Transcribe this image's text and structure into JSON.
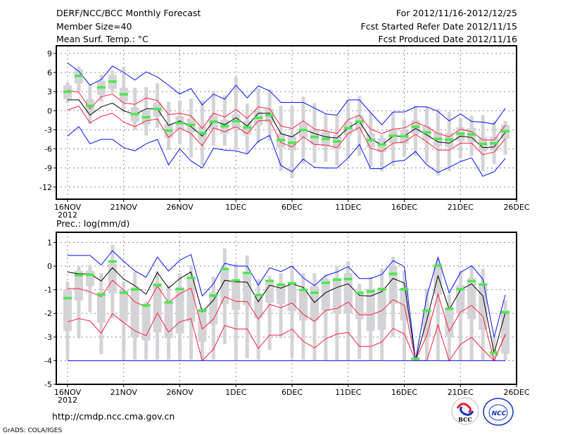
{
  "header": {
    "title": "DERF/NCC/BCC Monthly Forecast",
    "member_size": "Member Size=40",
    "variable": "Mean Surf. Temp.: °C",
    "period": "For 2012/11/16-2012/12/25",
    "started": "Fcst Started Refer Date 2012/11/15",
    "produced": "Fcst Produced Date 2012/11/16"
  },
  "footer": {
    "url": "http://cmdp.ncc.cma.gov.cn",
    "grads": "GrADS: COLA/IGES",
    "logo_bcc": "BCC",
    "logo_ncc": "NCC"
  },
  "colors": {
    "mean_marker": "#4be84b",
    "median_line": "#000000",
    "inner_band": "#ff1f3a",
    "outer_band": "#0010ff",
    "box": "#d4d4d8"
  },
  "chart_data": [
    {
      "type": "box",
      "title": "Mean Surf. Temp.: °C",
      "ylabel": "°C",
      "ylim": [
        -13.9,
        10.2
      ],
      "yticks": [
        9,
        6,
        3,
        0,
        -3,
        -6,
        -9,
        -12
      ],
      "xticks": [
        {
          "day": 0,
          "label": "16NOV",
          "sub": "2012"
        },
        {
          "day": 5,
          "label": "21NOV"
        },
        {
          "day": 10,
          "label": "26NOV"
        },
        {
          "day": 15,
          "label": "1DEC"
        },
        {
          "day": 20,
          "label": "6DEC"
        },
        {
          "day": 25,
          "label": "11DEC"
        },
        {
          "day": 30,
          "label": "16DEC"
        },
        {
          "day": 35,
          "label": "21DEC"
        },
        {
          "day": 40,
          "label": "26DEC"
        }
      ],
      "grid": true,
      "mean": [
        3.0,
        5.5,
        0.8,
        3.7,
        4.6,
        2.6,
        -0.5,
        -1.0,
        0.3,
        -3.1,
        -1.9,
        -2.2,
        -3.5,
        -1.7,
        -2.4,
        -1.6,
        -2.6,
        -1.1,
        -0.7,
        -4.6,
        -5.0,
        -3.0,
        -4.1,
        -4.4,
        -4.8,
        -2.7,
        -1.7,
        -4.6,
        -5.3,
        -3.9,
        -4.0,
        -2.5,
        -3.4,
        -4.4,
        -4.5,
        -3.6,
        -3.7,
        -5.2,
        -5.1,
        -3.2
      ],
      "whisker_low": [
        1.2,
        3.0,
        -2.1,
        1.4,
        2.8,
        -0.3,
        -3.0,
        -3.9,
        -2.7,
        -6.2,
        -5.2,
        -7.4,
        -8.6,
        -5.5,
        -5.5,
        -6.1,
        -6.8,
        -5.1,
        -4.7,
        -9.5,
        -10.6,
        -8.3,
        -8.2,
        -8.0,
        -8.6,
        -7.5,
        -7.1,
        -8.9,
        -9.5,
        -8.7,
        -7.1,
        -7.1,
        -8.2,
        -10.2,
        -9.5,
        -7.5,
        -7.1,
        -9.5,
        -8.4,
        -6.9
      ],
      "whisker_high": [
        4.5,
        6.9,
        4.0,
        5.6,
        6.3,
        6.9,
        3.6,
        3.7,
        4.3,
        1.4,
        1.6,
        1.9,
        1.6,
        3.1,
        2.4,
        5.3,
        1.1,
        3.5,
        3.4,
        0.8,
        0.7,
        2.2,
        1.2,
        -0.5,
        -0.8,
        1.7,
        2.3,
        -0.3,
        -3.8,
        -0.2,
        -1.4,
        0.8,
        0.6,
        0.3,
        -0.2,
        -1.2,
        -0.8,
        -0.7,
        -1.6,
        -1.6
      ],
      "box_low": [
        1.8,
        4.3,
        -0.4,
        2.5,
        3.4,
        1.4,
        -1.7,
        -2.2,
        -0.9,
        -4.3,
        -3.1,
        -3.4,
        -4.7,
        -2.9,
        -3.6,
        -2.8,
        -3.8,
        -2.3,
        -1.9,
        -5.8,
        -6.2,
        -4.2,
        -5.3,
        -5.6,
        -6.0,
        -3.9,
        -2.9,
        -5.8,
        -6.5,
        -5.1,
        -5.2,
        -3.7,
        -4.6,
        -5.6,
        -5.7,
        -4.8,
        -4.9,
        -6.4,
        -6.3,
        -4.4
      ],
      "box_high": [
        4.0,
        6.5,
        1.8,
        4.7,
        5.6,
        3.6,
        0.5,
        0.0,
        1.3,
        -2.1,
        -0.9,
        -1.2,
        -2.5,
        -0.7,
        -1.4,
        -0.6,
        -1.6,
        -0.1,
        0.3,
        -3.6,
        -4.0,
        -2.0,
        -3.1,
        -3.4,
        -3.8,
        -1.7,
        -0.7,
        -3.6,
        -4.3,
        -2.9,
        -3.0,
        -1.5,
        -2.4,
        -3.4,
        -3.5,
        -2.6,
        -2.7,
        -4.2,
        -4.1,
        -2.2
      ],
      "series": [
        {
          "name": "black",
          "color": "#000000",
          "values": [
            1.7,
            1.7,
            -0.7,
            0.6,
            1.2,
            0.0,
            -0.6,
            0.3,
            0.3,
            -2.3,
            -1.6,
            -2.5,
            -4.0,
            -1.6,
            -2.2,
            -1.1,
            -2.4,
            -0.4,
            -0.4,
            -3.6,
            -4.1,
            -2.9,
            -3.6,
            -4.1,
            -4.3,
            -2.7,
            -1.7,
            -4.4,
            -5.4,
            -4.0,
            -4.0,
            -2.8,
            -3.8,
            -4.9,
            -5.1,
            -4.0,
            -4.2,
            -5.8,
            -5.7,
            -3.4
          ]
        },
        {
          "name": "red-upper",
          "color": "#ff1f3a",
          "values": [
            3.2,
            2.9,
            0.3,
            2.2,
            2.6,
            1.2,
            1.0,
            2.0,
            1.6,
            -0.6,
            -0.4,
            -0.8,
            -2.8,
            -0.4,
            -1.0,
            0.2,
            -1.2,
            0.6,
            0.3,
            -2.4,
            -2.8,
            -1.6,
            -2.9,
            -3.2,
            -3.6,
            -1.4,
            -0.7,
            -2.9,
            -3.6,
            -2.9,
            -2.7,
            -1.8,
            -2.5,
            -3.6,
            -4.1,
            -2.9,
            -3.3,
            -4.6,
            -4.6,
            -2.3
          ]
        },
        {
          "name": "red-lower",
          "color": "#ff1f3a",
          "values": [
            0.1,
            0.7,
            -1.9,
            -0.9,
            -0.4,
            -1.8,
            -2.5,
            -1.6,
            -1.3,
            -4.2,
            -2.7,
            -3.6,
            -5.5,
            -2.7,
            -3.3,
            -2.5,
            -3.6,
            -1.6,
            -1.5,
            -5.0,
            -5.7,
            -4.1,
            -5.3,
            -5.4,
            -5.8,
            -3.6,
            -2.6,
            -5.9,
            -6.4,
            -5.1,
            -4.9,
            -3.7,
            -4.9,
            -6.2,
            -6.2,
            -5.1,
            -5.1,
            -6.9,
            -6.5,
            -4.4
          ]
        },
        {
          "name": "blue-upper",
          "color": "#0010ff",
          "values": [
            7.5,
            6.2,
            4.0,
            4.9,
            7.0,
            6.0,
            4.8,
            6.1,
            5.3,
            4.0,
            2.6,
            3.5,
            0.9,
            2.6,
            1.8,
            4.0,
            2.0,
            3.9,
            3.1,
            1.3,
            1.3,
            1.3,
            0.4,
            -0.5,
            -0.7,
            1.7,
            1.7,
            -0.3,
            -2.2,
            -0.2,
            -0.2,
            0.6,
            0.6,
            -0.1,
            -1.6,
            -0.5,
            -1.7,
            -1.8,
            -2.1,
            0.4
          ]
        },
        {
          "name": "blue-lower",
          "color": "#0010ff",
          "values": [
            -4.0,
            -2.5,
            -5.2,
            -4.5,
            -4.5,
            -5.8,
            -6.3,
            -5.2,
            -4.5,
            -8.5,
            -6.0,
            -7.9,
            -9.0,
            -5.9,
            -6.2,
            -6.3,
            -6.8,
            -4.8,
            -3.9,
            -8.6,
            -9.6,
            -7.6,
            -8.9,
            -9.0,
            -9.0,
            -7.4,
            -5.3,
            -9.1,
            -9.1,
            -8.0,
            -7.8,
            -6.4,
            -8.5,
            -9.7,
            -8.9,
            -8.0,
            -7.4,
            -10.3,
            -9.6,
            -7.5
          ]
        }
      ]
    },
    {
      "type": "box",
      "title": "Prec.: log(mm/d)",
      "ylabel": "log(mm/d)",
      "ylim": [
        -5,
        1.43
      ],
      "yticks": [
        1,
        0,
        -1,
        -2,
        -3,
        -4,
        -5
      ],
      "xticks": [
        {
          "day": 0,
          "label": "16NOV",
          "sub": "2012"
        },
        {
          "day": 5,
          "label": "21NOV"
        },
        {
          "day": 10,
          "label": "26NOV"
        },
        {
          "day": 15,
          "label": "1DEC"
        },
        {
          "day": 20,
          "label": "6DEC"
        },
        {
          "day": 25,
          "label": "11DEC"
        },
        {
          "day": 30,
          "label": "16DEC"
        },
        {
          "day": 35,
          "label": "21DEC"
        },
        {
          "day": 40,
          "label": "26DEC"
        }
      ],
      "grid": true,
      "mean": [
        -1.35,
        -0.38,
        -0.36,
        -1.2,
        0.2,
        -1.12,
        -0.98,
        -1.65,
        -0.8,
        -1.53,
        -0.96,
        -0.49,
        -1.87,
        -1.24,
        -0.12,
        -0.6,
        -0.28,
        -1.22,
        -0.62,
        -0.78,
        -0.72,
        -1.0,
        -1.12,
        -0.7,
        -0.57,
        -0.54,
        -1.12,
        -1.06,
        -0.97,
        -0.32,
        -0.97,
        -3.91,
        -1.88,
        0.02,
        -1.8,
        -0.97,
        -0.63,
        -0.77,
        -3.65,
        -1.95
      ],
      "whisker_low": [
        -3.95,
        -3.05,
        -1.95,
        -3.72,
        -2.2,
        -3.95,
        -3.95,
        -3.95,
        -3.95,
        -3.95,
        -3.95,
        -3.95,
        -3.95,
        -3.95,
        -3.3,
        -3.95,
        -3.9,
        -3.95,
        -3.55,
        -3.05,
        -3.9,
        -3.95,
        -3.98,
        -3.98,
        -3.98,
        -3.98,
        -3.93,
        -3.98,
        -3.98,
        -2.99,
        -3.98,
        -3.98,
        -3.98,
        -3.98,
        -3.98,
        -3.98,
        -3.98,
        -3.98,
        -3.98,
        -3.98
      ],
      "whisker_high": [
        -0.65,
        0.0,
        0.05,
        -0.3,
        0.9,
        -0.65,
        -0.25,
        -1.5,
        -0.2,
        -0.8,
        -0.3,
        0.05,
        -1.75,
        -0.45,
        0.75,
        0.1,
        0.45,
        -0.55,
        -0.4,
        -0.3,
        -0.05,
        -0.3,
        -0.3,
        -0.4,
        0.0,
        0.2,
        -0.75,
        -0.45,
        -0.1,
        0.4,
        -0.2,
        -3.85,
        -0.95,
        0.3,
        -1.2,
        -0.2,
        0.0,
        -0.1,
        -2.99,
        -1.45
      ],
      "box_low": [
        -2.75,
        -1.45,
        -0.85,
        -2.4,
        -1.15,
        -2.35,
        -3.0,
        -3.15,
        -2.8,
        -3.05,
        -2.85,
        -2.35,
        -3.2,
        -2.45,
        -1.6,
        -1.85,
        -1.65,
        -2.2,
        -1.55,
        -1.6,
        -1.9,
        -2.3,
        -2.3,
        -1.9,
        -2.0,
        -2.0,
        -2.25,
        -2.75,
        -2.7,
        -1.6,
        -2.3,
        -3.95,
        -3.0,
        -1.2,
        -3.0,
        -2.0,
        -2.25,
        -2.7,
        -3.8,
        -3.7
      ],
      "box_high": [
        -1.0,
        -0.2,
        -0.2,
        -1.1,
        0.1,
        -1.0,
        -0.9,
        -1.65,
        -0.7,
        -1.55,
        -0.9,
        -0.45,
        -1.85,
        -1.1,
        -0.1,
        -0.6,
        -0.25,
        -1.2,
        -0.6,
        -0.75,
        -0.7,
        -1.0,
        -0.85,
        -0.55,
        -0.5,
        -0.3,
        -1.1,
        -0.95,
        -0.9,
        0.0,
        -0.95,
        -3.88,
        -1.8,
        0.0,
        -1.8,
        -0.8,
        -0.5,
        -0.8,
        -3.6,
        -1.85
      ],
      "series": [
        {
          "name": "black",
          "color": "#000000",
          "values": [
            -0.25,
            -0.33,
            -0.33,
            -0.63,
            -0.07,
            -0.55,
            -0.83,
            -1.19,
            -0.27,
            -0.93,
            -0.53,
            -0.25,
            -1.94,
            -1.44,
            -0.6,
            -0.67,
            -0.68,
            -1.51,
            -0.81,
            -0.93,
            -0.75,
            -0.9,
            -1.54,
            -1.12,
            -0.9,
            -0.75,
            -1.24,
            -1.27,
            -1.08,
            -0.52,
            -0.72,
            -3.98,
            -2.29,
            -0.41,
            -1.84,
            -1.01,
            -0.75,
            -1.26,
            -3.68,
            -1.97
          ]
        },
        {
          "name": "red-upper",
          "color": "#ff1f3a",
          "values": [
            -0.95,
            -0.95,
            -1.09,
            -1.29,
            -0.6,
            -1.02,
            -1.52,
            -1.72,
            -0.85,
            -1.54,
            -1.17,
            -0.93,
            -2.66,
            -2.24,
            -1.29,
            -1.5,
            -1.5,
            -2.24,
            -1.62,
            -1.76,
            -1.56,
            -2.04,
            -2.34,
            -1.87,
            -1.79,
            -1.52,
            -2.06,
            -2.06,
            -1.89,
            -1.42,
            -1.66,
            -3.98,
            -2.94,
            -1.19,
            -2.76,
            -1.94,
            -1.67,
            -2.12,
            -4.0,
            -2.89
          ]
        },
        {
          "name": "red-lower",
          "color": "#ff1f3a",
          "values": [
            -2.36,
            -2.22,
            -2.32,
            -2.84,
            -2.01,
            -2.39,
            -2.74,
            -2.94,
            -1.99,
            -2.79,
            -2.36,
            -2.22,
            -4.0,
            -3.51,
            -2.51,
            -2.66,
            -2.66,
            -3.48,
            -2.92,
            -2.92,
            -2.67,
            -3.18,
            -3.46,
            -3.08,
            -2.87,
            -2.81,
            -3.4,
            -3.4,
            -3.21,
            -2.64,
            -2.87,
            -4.0,
            -4.0,
            -2.49,
            -4.0,
            -3.31,
            -3.01,
            -3.53,
            -4.0,
            -2.9
          ]
        },
        {
          "name": "blue-upper",
          "color": "#0010ff",
          "values": [
            0.45,
            0.45,
            0.45,
            0.05,
            0.65,
            0.2,
            -0.2,
            -0.47,
            0.38,
            -0.21,
            0.25,
            0.49,
            -1.26,
            -0.75,
            0.12,
            0.0,
            0.0,
            -0.81,
            -0.07,
            -0.23,
            0.0,
            -0.5,
            -0.83,
            -0.4,
            -0.25,
            -0.02,
            -0.53,
            -0.53,
            -0.35,
            0.23,
            -0.02,
            -3.98,
            -1.29,
            0.37,
            -1.14,
            -0.27,
            0.02,
            -0.55,
            -3.01,
            -1.21
          ]
        },
        {
          "name": "blue-lower",
          "color": "#0010ff",
          "values": [
            -4,
            -4,
            -4,
            -4,
            -4,
            -4,
            -4,
            -4,
            -4,
            -4,
            -4,
            -4,
            -4,
            -4,
            -4,
            -4,
            -4,
            -4,
            -4,
            -4,
            -4,
            -4,
            -4,
            -4,
            -4,
            -4,
            -4,
            -4,
            -4,
            -4,
            -4,
            -4,
            -4,
            -4,
            -4,
            -4,
            -4,
            -4,
            -4,
            -4
          ]
        }
      ]
    }
  ]
}
